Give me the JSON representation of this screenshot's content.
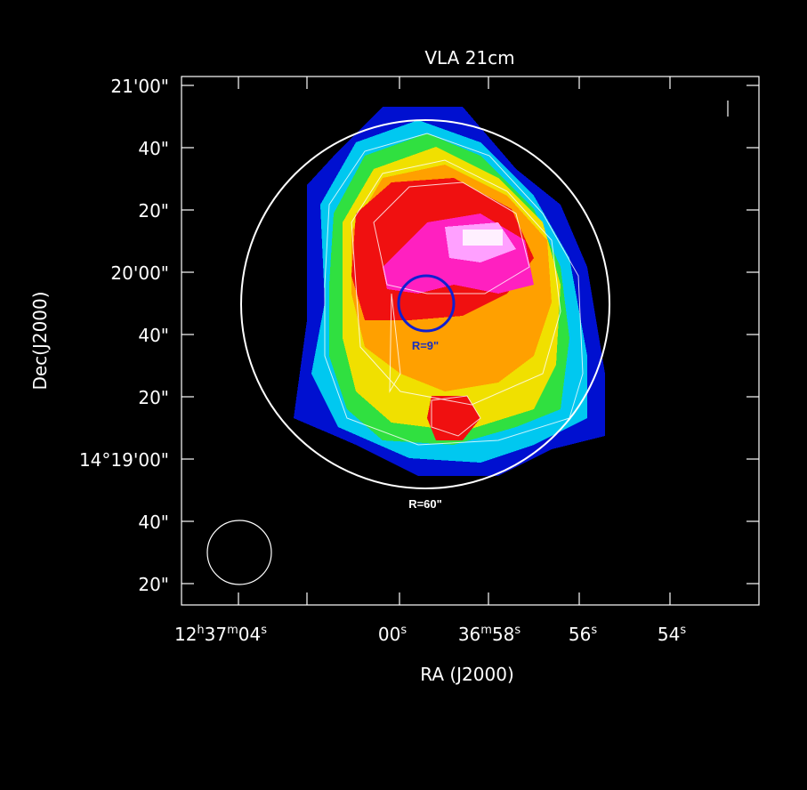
{
  "title": "VLA 21cm",
  "x_axis": {
    "label": "RA (J2000)",
    "tick_labels": [
      [
        "12",
        "h",
        "37",
        "m",
        "04",
        "s"
      ],
      [
        "00",
        "s"
      ],
      [
        "36",
        "m",
        "58",
        "s"
      ],
      [
        "56",
        "s"
      ],
      [
        "54",
        "s"
      ]
    ]
  },
  "y_axis": {
    "label": "Dec(J2000)",
    "tick_labels": [
      "21'00\"",
      "40\"",
      "20\"",
      "20'00\"",
      "40\"",
      "20\"",
      "14°19'00\"",
      "40\"",
      "20\""
    ]
  },
  "annotations": {
    "inner_circle": "R=9\"",
    "outer_circle": "R=60\""
  }
}
